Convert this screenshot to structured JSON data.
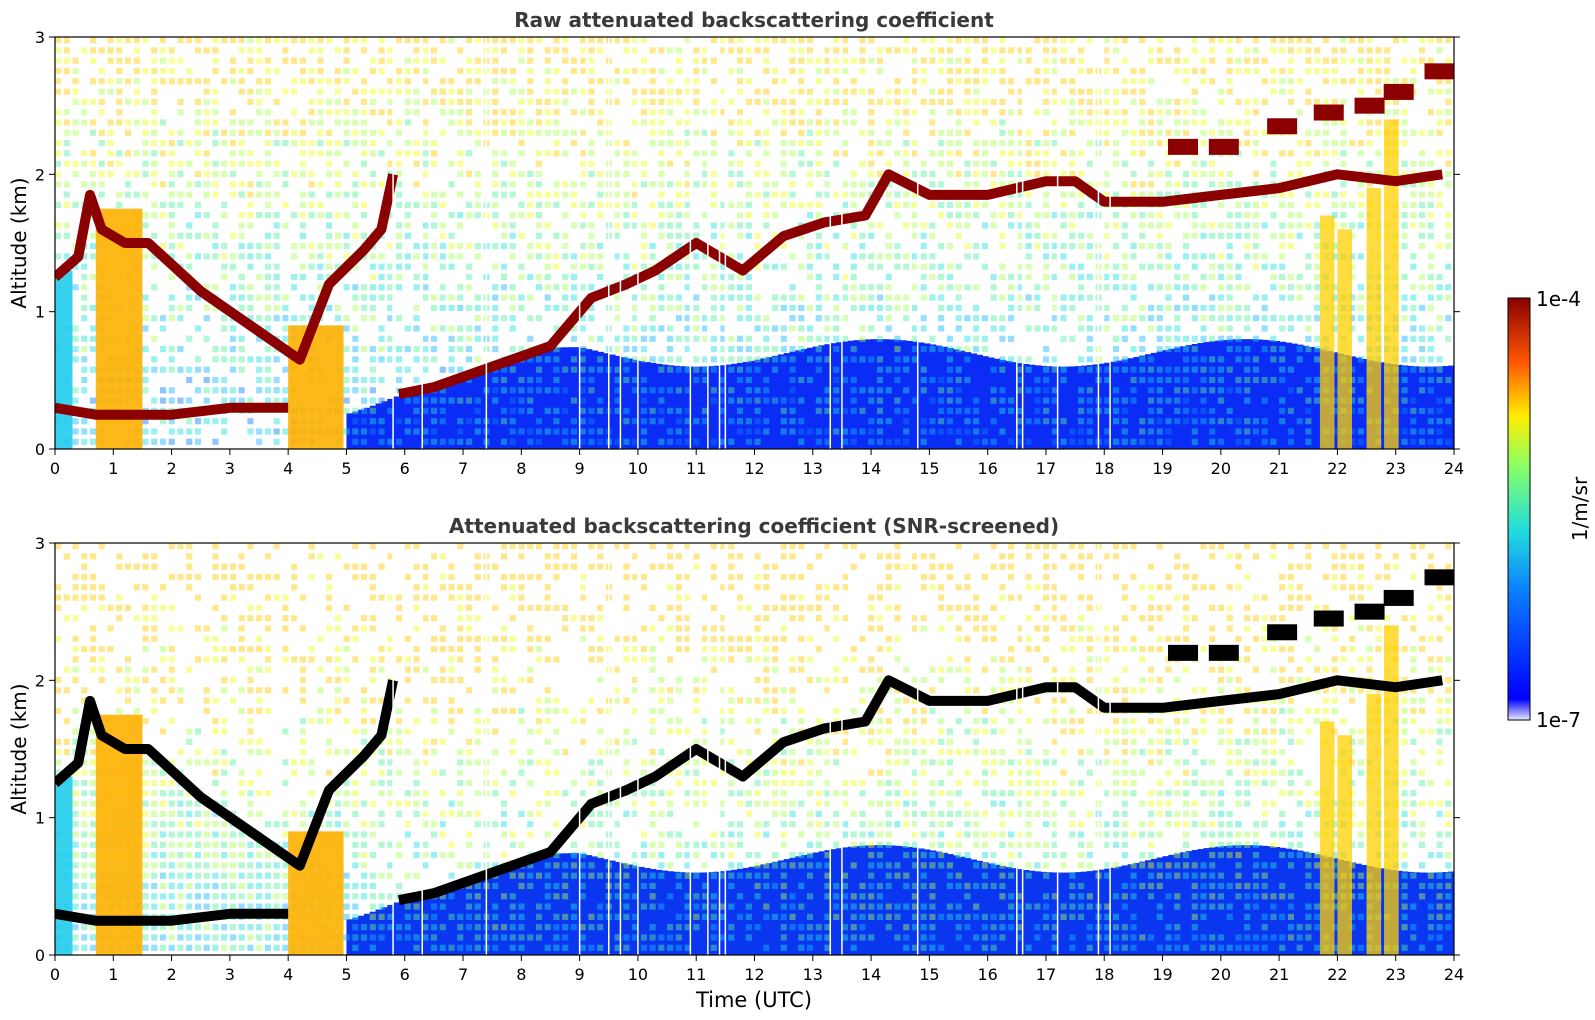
{
  "figure": {
    "colorbar": {
      "label": "1/m/sr",
      "max_label": "1e-4",
      "min_label": "1e-7",
      "vmin": 1e-07,
      "vmax": 0.0001,
      "scale": "log",
      "colormap": "jet"
    }
  },
  "chart_data": [
    {
      "type": "heatmap",
      "title": "Raw attenuated backscattering coefficient",
      "xlabel": "",
      "ylabel": "Altitude (km)",
      "xlim": [
        0,
        24
      ],
      "ylim": [
        0,
        3
      ],
      "x_ticks": [
        "0",
        "1",
        "2",
        "3",
        "4",
        "5",
        "6",
        "7",
        "8",
        "9",
        "10",
        "11",
        "12",
        "13",
        "14",
        "15",
        "16",
        "17",
        "18",
        "19",
        "20",
        "21",
        "22",
        "23",
        "24"
      ],
      "y_ticks": [
        "0",
        "1",
        "2",
        "3"
      ],
      "grid": false,
      "cloud_layer": {
        "description_units": "time (UTC hours) vs altitude (km)",
        "points": [
          [
            0,
            1.25
          ],
          [
            0.4,
            1.4
          ],
          [
            0.6,
            1.85
          ],
          [
            0.8,
            1.6
          ],
          [
            1.2,
            1.5
          ],
          [
            1.6,
            1.5
          ],
          [
            2.5,
            1.15
          ],
          [
            4.2,
            0.65
          ],
          [
            4.7,
            1.2
          ],
          [
            5.3,
            1.45
          ],
          [
            5.6,
            1.6
          ],
          [
            5.8,
            2.0
          ],
          [
            5.9,
            0.4
          ],
          [
            6.5,
            0.45
          ],
          [
            7.5,
            0.6
          ],
          [
            8.5,
            0.75
          ],
          [
            9.2,
            1.1
          ],
          [
            9.8,
            1.2
          ],
          [
            10.3,
            1.3
          ],
          [
            11.0,
            1.5
          ],
          [
            11.8,
            1.3
          ],
          [
            12.5,
            1.55
          ],
          [
            13.2,
            1.65
          ],
          [
            13.9,
            1.7
          ],
          [
            14.3,
            2.0
          ],
          [
            15.0,
            1.85
          ],
          [
            16.0,
            1.85
          ],
          [
            17.0,
            1.95
          ],
          [
            17.5,
            1.95
          ],
          [
            18.0,
            1.8
          ],
          [
            19.0,
            1.8
          ],
          [
            20.0,
            1.85
          ],
          [
            21.0,
            1.9
          ],
          [
            22.0,
            2.0
          ],
          [
            23.0,
            1.95
          ],
          [
            23.8,
            2.0
          ]
        ]
      },
      "low_layer": {
        "points": [
          [
            0,
            0.3
          ],
          [
            0.7,
            0.25
          ],
          [
            1.2,
            0.25
          ],
          [
            2.0,
            0.25
          ],
          [
            3.0,
            0.3
          ],
          [
            4.0,
            0.3
          ]
        ]
      },
      "upper_patches": {
        "points": [
          [
            19.3,
            2.2
          ],
          [
            20.0,
            2.2
          ],
          [
            21.0,
            2.35
          ],
          [
            21.8,
            2.45
          ],
          [
            22.5,
            2.5
          ],
          [
            23.0,
            2.6
          ],
          [
            23.7,
            2.75
          ]
        ]
      }
    },
    {
      "type": "heatmap",
      "title": "Attenuated backscattering coefficient (SNR-screened)",
      "xlabel": "Time (UTC)",
      "ylabel": "Altitude (km)",
      "xlim": [
        0,
        24
      ],
      "ylim": [
        0,
        3
      ],
      "x_ticks": [
        "0",
        "1",
        "2",
        "3",
        "4",
        "5",
        "6",
        "7",
        "8",
        "9",
        "10",
        "11",
        "12",
        "13",
        "14",
        "15",
        "16",
        "17",
        "18",
        "19",
        "20",
        "21",
        "22",
        "23",
        "24"
      ],
      "y_ticks": [
        "0",
        "1",
        "2",
        "3"
      ],
      "grid": false
    }
  ]
}
